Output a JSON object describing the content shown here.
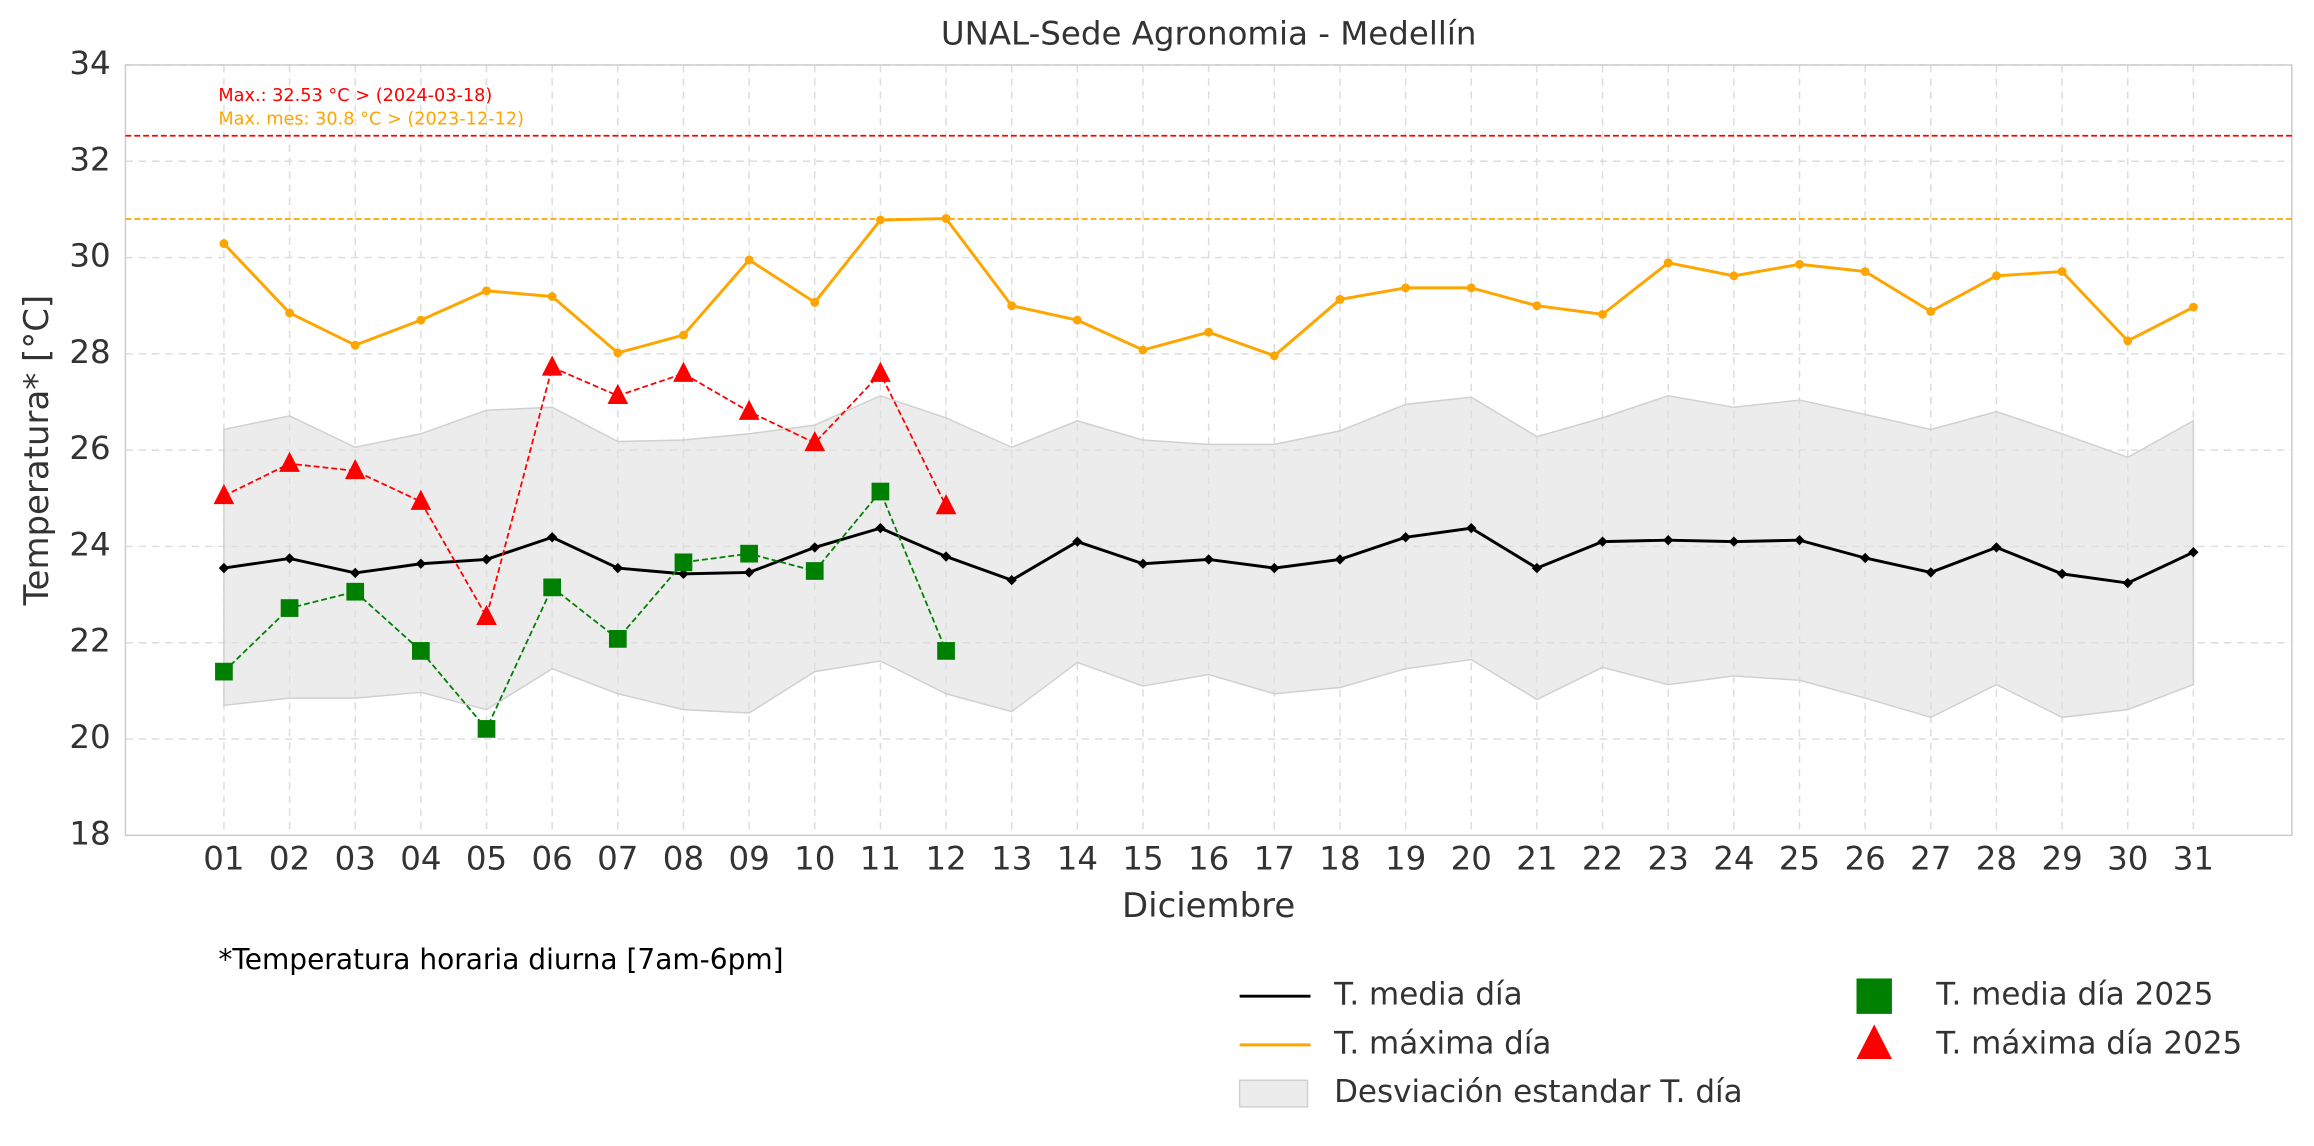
{
  "chart_data": {
    "type": "line",
    "title": "UNAL-Sede Agronomia - Medellín",
    "x_label": "Diciembre",
    "y_label": "Temperatura* [°C]",
    "footnote": "*Temperatura horaria diurna [7am-6pm]",
    "categories": [
      "01",
      "02",
      "03",
      "04",
      "05",
      "06",
      "07",
      "08",
      "09",
      "10",
      "11",
      "12",
      "13",
      "14",
      "15",
      "16",
      "17",
      "18",
      "19",
      "20",
      "21",
      "22",
      "23",
      "24",
      "25",
      "26",
      "27",
      "28",
      "29",
      "30",
      "31"
    ],
    "ylim": [
      18,
      34
    ],
    "yticks": [
      18,
      20,
      22,
      24,
      26,
      28,
      30,
      32,
      34
    ],
    "grid": true,
    "reference_lines": [
      {
        "value": 32.53,
        "color": "#ff0000",
        "label": "Max.: 32.53 °C  >  (2024-03-18)"
      },
      {
        "value": 30.8,
        "color": "#ffa500",
        "label": "Max. mes: 30.8 °C  >  (2023-12-12)"
      }
    ],
    "series": [
      {
        "name": "T. media día",
        "color": "#000000",
        "marker": "diamond",
        "linestyle": "solid",
        "values": [
          23.55,
          23.75,
          23.45,
          23.64,
          23.73,
          24.19,
          23.55,
          23.43,
          23.46,
          23.98,
          24.38,
          23.79,
          23.3,
          24.1,
          23.64,
          23.73,
          23.55,
          23.73,
          24.19,
          24.38,
          23.55,
          24.1,
          24.13,
          24.1,
          24.13,
          23.76,
          23.46,
          23.98,
          23.43,
          23.24,
          23.88
        ]
      },
      {
        "name": "T. máxima día",
        "color": "#ffa500",
        "marker": "circle",
        "linestyle": "solid",
        "values": [
          30.29,
          28.85,
          28.18,
          28.7,
          29.31,
          29.19,
          28.02,
          28.39,
          29.95,
          29.07,
          30.78,
          30.81,
          29.0,
          28.7,
          28.08,
          28.45,
          27.96,
          29.13,
          29.37,
          29.37,
          29.0,
          28.82,
          29.89,
          29.62,
          29.86,
          29.71,
          28.88,
          29.62,
          29.71,
          28.27,
          28.97
        ]
      },
      {
        "name": "Desviación estandar T. día",
        "color": "#e0e0e0",
        "marker": "band",
        "linestyle": "band",
        "values": [
          26.43,
          26.71,
          26.06,
          26.34,
          26.83,
          26.89,
          26.18,
          26.21,
          26.34,
          26.52,
          27.13,
          26.67,
          26.06,
          26.61,
          26.21,
          26.12,
          26.12,
          26.4,
          26.95,
          27.1,
          26.28,
          26.67,
          27.13,
          26.89,
          27.04,
          26.74,
          26.43,
          26.8,
          26.34,
          25.85,
          26.61
        ],
        "lower": [
          20.7,
          20.85,
          20.85,
          20.97,
          20.61,
          21.46,
          20.94,
          20.61,
          20.54,
          21.4,
          21.62,
          20.94,
          20.57,
          21.59,
          21.1,
          21.34,
          20.94,
          21.07,
          21.46,
          21.65,
          20.82,
          21.49,
          21.13,
          21.31,
          21.22,
          20.85,
          20.45,
          21.13,
          20.45,
          20.61,
          21.13
        ]
      },
      {
        "name": "T. media día 2025",
        "color": "#008000",
        "marker": "square",
        "linestyle": "dashed",
        "values": [
          21.4,
          22.72,
          23.06,
          21.83,
          20.21,
          23.15,
          22.08,
          23.67,
          23.85,
          23.49,
          25.14,
          21.83,
          null,
          null,
          null,
          null,
          null,
          null,
          null,
          null,
          null,
          null,
          null,
          null,
          null,
          null,
          null,
          null,
          null,
          null,
          null
        ]
      },
      {
        "name": "T. máxima día 2025",
        "color": "#ff0000",
        "marker": "triangle",
        "linestyle": "dashed",
        "values": [
          25.05,
          25.72,
          25.57,
          24.93,
          22.54,
          27.72,
          27.13,
          27.59,
          26.8,
          26.15,
          27.59,
          24.84,
          null,
          null,
          null,
          null,
          null,
          null,
          null,
          null,
          null,
          null,
          null,
          null,
          null,
          null,
          null,
          null,
          null,
          null,
          null
        ]
      }
    ]
  }
}
